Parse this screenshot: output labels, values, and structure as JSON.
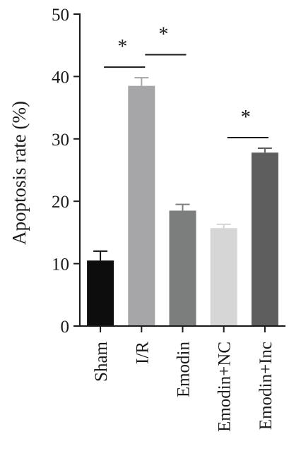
{
  "chart_data": {
    "type": "bar",
    "ylabel": "Apoptosis rate (%)",
    "ylim": [
      0,
      50
    ],
    "yticks": [
      0,
      10,
      20,
      30,
      40,
      50
    ],
    "categories": [
      "Sham",
      "I/R",
      "Emodin",
      "Emodin+NC",
      "Emodin+Inc"
    ],
    "values": [
      10.5,
      38.5,
      18.5,
      15.7,
      27.8
    ],
    "errors": [
      1.5,
      1.3,
      1.0,
      0.6,
      0.7
    ],
    "colors": [
      "#0d0d0d",
      "#a6a6a8",
      "#7c7d7d",
      "#d6d6d6",
      "#5e5e5e"
    ],
    "significance": [
      {
        "from": 0,
        "to": 1,
        "label": "*",
        "level": 41.5
      },
      {
        "from": 1,
        "to": 2,
        "label": "*",
        "level": 43.5
      },
      {
        "from": 3,
        "to": 4,
        "label": "*",
        "level": 30.2
      }
    ]
  }
}
